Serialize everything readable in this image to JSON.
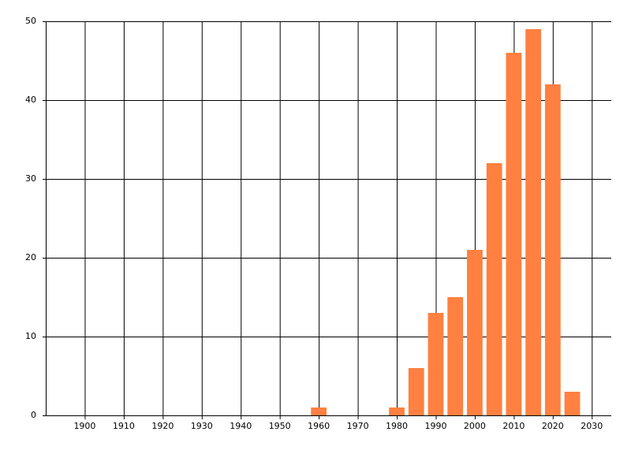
{
  "chart_data": {
    "type": "bar",
    "x": [
      1960,
      1980,
      1985,
      1990,
      1995,
      2000,
      2005,
      2010,
      2015,
      2020,
      2025
    ],
    "values": [
      1,
      1,
      6,
      13,
      15,
      21,
      32,
      46,
      49,
      42,
      3
    ],
    "color": "#ff8040",
    "xlim": [
      1890,
      2035
    ],
    "xticks": [
      1900,
      1910,
      1920,
      1930,
      1940,
      1950,
      1960,
      1970,
      1980,
      1990,
      2000,
      2010,
      2020,
      2030
    ],
    "ylim": [
      0,
      50
    ],
    "yticks": [
      0,
      10,
      20,
      30,
      40,
      50
    ],
    "grid": true
  }
}
